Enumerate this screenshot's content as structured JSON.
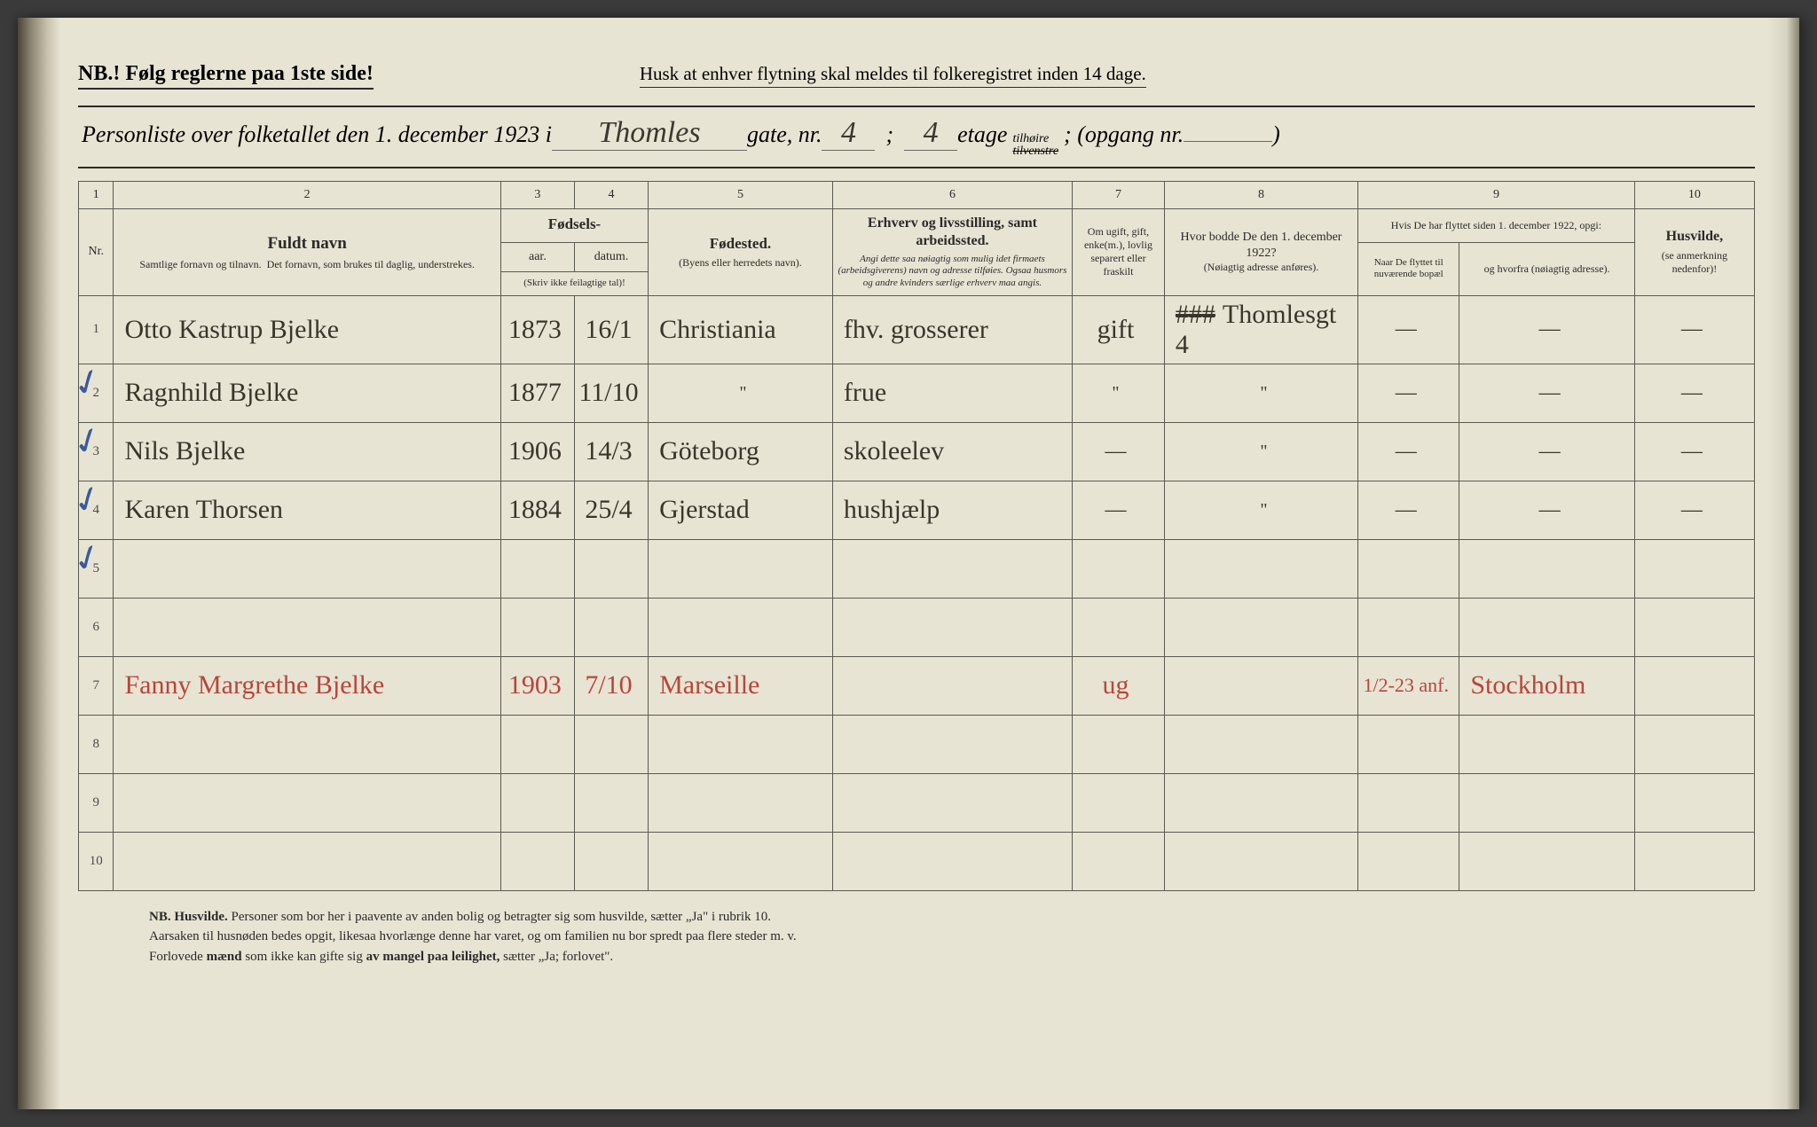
{
  "header": {
    "nb": "NB.! Følg reglerne paa 1ste side!",
    "husk": "Husk at enhver flytning skal meldes til folkeregistret inden 14 dage."
  },
  "title": {
    "prefix": "Personliste over folketallet den 1. december 1923 i",
    "street_hand": "Thomles",
    "gate_label": "gate, nr.",
    "gate_nr": "4",
    "semicolon": ";",
    "etage_nr": "4",
    "etage_label": "etage",
    "tilhoire": "tilhøire",
    "tilvenstre": "tilvenstre",
    "opgang": "; (opgang nr.",
    "closing": ")"
  },
  "colnums": [
    "1",
    "2",
    "3",
    "4",
    "5",
    "6",
    "7",
    "8",
    "9",
    "10"
  ],
  "headers": {
    "nr": "Nr.",
    "fuldt_navn": "Fuldt navn",
    "fuldt_sub": "Samtlige fornavn og tilnavn.  Det fornavn, som brukes til daglig, understrekes.",
    "fodsels": "Fødsels-",
    "aar": "aar.",
    "datum": "datum.",
    "skriv": "(Skriv ikke feilagtige tal)!",
    "fodested": "Fødested.",
    "fodested_sub": "(Byens eller herredets navn).",
    "erhverv": "Erhverv og livsstilling, samt arbeidssted.",
    "erhverv_sub": "Angi dette saa nøiagtig som mulig idet firmaets (arbeidsgiverens) navn og adresse tilføies. Ogsaa husmors og andre kvinders særlige erhverv maa angis.",
    "gift": "Om ugift, gift, enke(m.), lovlig separert eller fraskilt",
    "hvor_bodde": "Hvor bodde De den 1. december 1922?",
    "hvor_sub": "(Nøiagtig adresse anføres).",
    "hvis": "Hvis De har flyttet siden 1. december 1922, opgi:",
    "naar": "Naar De flyttet til nuværende bopæl",
    "hvorfra": "og hvorfra (nøiagtig adresse).",
    "husvilde": "Husvilde,",
    "husvilde_sub": "(se anmerkning nedenfor)!"
  },
  "rows": [
    {
      "nr": "1",
      "name": "Otto Kastrup Bjelke",
      "aar": "1873",
      "datum": "16/1",
      "sted": "Christiania",
      "erhverv": "fhv. grosserer",
      "gift": "gift",
      "bodde": "Thomlesgt 4",
      "naar": "—",
      "hvorfra": "—",
      "husv": "—",
      "red": false,
      "struck_bodde": true
    },
    {
      "nr": "2",
      "name": "Ragnhild Bjelke",
      "aar": "1877",
      "datum": "11/10",
      "sted": "\"",
      "erhverv": "frue",
      "gift": "\"",
      "bodde": "\"",
      "naar": "—",
      "hvorfra": "—",
      "husv": "—",
      "red": false
    },
    {
      "nr": "3",
      "name": "Nils Bjelke",
      "aar": "1906",
      "datum": "14/3",
      "sted": "Göteborg",
      "erhverv": "skoleelev",
      "gift": "—",
      "bodde": "\"",
      "naar": "—",
      "hvorfra": "—",
      "husv": "—",
      "red": false
    },
    {
      "nr": "4",
      "name": "Karen Thorsen",
      "aar": "1884",
      "datum": "25/4",
      "sted": "Gjerstad",
      "erhverv": "hushjælp",
      "gift": "—",
      "bodde": "\"",
      "naar": "—",
      "hvorfra": "—",
      "husv": "—",
      "red": false
    },
    {
      "nr": "5",
      "name": "",
      "aar": "",
      "datum": "",
      "sted": "",
      "erhverv": "",
      "gift": "",
      "bodde": "",
      "naar": "",
      "hvorfra": "",
      "husv": "",
      "red": false
    },
    {
      "nr": "6",
      "name": "",
      "aar": "",
      "datum": "",
      "sted": "",
      "erhverv": "",
      "gift": "",
      "bodde": "",
      "naar": "",
      "hvorfra": "",
      "husv": "",
      "red": false
    },
    {
      "nr": "7",
      "name": "Fanny Margrethe Bjelke",
      "aar": "1903",
      "datum": "7/10",
      "sted": "Marseille",
      "erhverv": "",
      "gift": "ug",
      "bodde": "",
      "naar": "1/2-23 anf.",
      "hvorfra": "Stockholm",
      "husv": "",
      "red": true
    },
    {
      "nr": "8",
      "name": "",
      "aar": "",
      "datum": "",
      "sted": "",
      "erhverv": "",
      "gift": "",
      "bodde": "",
      "naar": "",
      "hvorfra": "",
      "husv": "",
      "red": false
    },
    {
      "nr": "9",
      "name": "",
      "aar": "",
      "datum": "",
      "sted": "",
      "erhverv": "",
      "gift": "",
      "bodde": "",
      "naar": "",
      "hvorfra": "",
      "husv": "",
      "red": false
    },
    {
      "nr": "10",
      "name": "",
      "aar": "",
      "datum": "",
      "sted": "",
      "erhverv": "",
      "gift": "",
      "bodde": "",
      "naar": "",
      "hvorfra": "",
      "husv": "",
      "red": false
    }
  ],
  "footer": {
    "line1_b1": "NB. Husvilde.",
    "line1": "Personer som bor her i paavente av anden bolig og betragter sig som husvilde, sætter „Ja\" i rubrik 10.",
    "line2": "Aarsaken til husnøden bedes opgit, likesaa hvorlænge denne har varet, og om familien nu bor spredt paa flere steder m. v.",
    "line3a": "Forlovede ",
    "line3b": "mænd",
    "line3c": " som ikke kan gifte sig ",
    "line3d": "av mangel paa leilighet,",
    "line3e": " sætter „Ja; forlovet\"."
  },
  "style": {
    "paper_bg": "#e8e4d4",
    "ink": "#2a2a2a",
    "hand_ink": "#3a352a",
    "red_ink": "#b8453a",
    "blue_ink": "#3a5a9a",
    "border": "#5a5a50"
  }
}
